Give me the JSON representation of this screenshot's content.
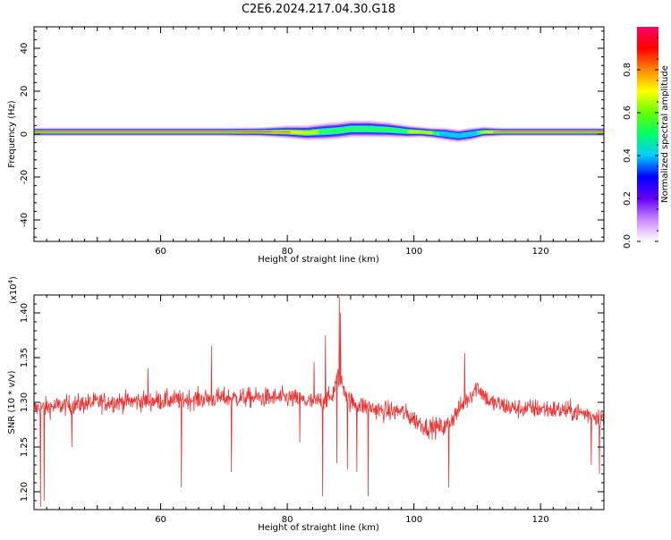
{
  "title": "C2E6.2024.217.04.30.G18",
  "chart_data": [
    {
      "type": "heatmap",
      "xlabel": "Height of straight line (km)",
      "ylabel": "Frequency (Hz)",
      "xlim": [
        40,
        130
      ],
      "ylim": [
        -50,
        50
      ],
      "xticks": [
        60,
        80,
        100,
        120
      ],
      "yticks": [
        40,
        20,
        0,
        -20,
        -40
      ],
      "colorbar": {
        "label": "Normalized spectral amplitude",
        "range": [
          0,
          1
        ],
        "ticks": [
          0.0,
          0.2,
          0.4,
          0.6,
          0.8
        ],
        "colors": [
          "#ffffff",
          "#cc88ff",
          "#6600ff",
          "#0000ff",
          "#00ccff",
          "#00ff66",
          "#66ff00",
          "#ffff00",
          "#ff8800",
          "#ff0000",
          "#ff0066"
        ]
      },
      "ridge": {
        "x": [
          40,
          50,
          60,
          70,
          76,
          80,
          83,
          86,
          88,
          90,
          93,
          96,
          99,
          101,
          103,
          105,
          107,
          109,
          111,
          114,
          118,
          122,
          126,
          130
        ],
        "center": [
          1,
          1,
          1,
          1,
          1,
          1,
          0.6,
          1.2,
          1.6,
          2.4,
          2.4,
          2,
          1.2,
          1,
          0.5,
          0,
          -0.8,
          0,
          1,
          1,
          1,
          1,
          1,
          1
        ],
        "halfwidth": [
          2,
          2,
          2,
          2,
          2.2,
          3,
          3.5,
          4,
          4,
          4,
          4,
          3.6,
          3,
          2.5,
          2.5,
          3,
          3,
          3,
          2.5,
          2,
          2,
          2,
          2,
          2
        ],
        "peak": [
          1,
          1,
          1,
          1,
          0.95,
          0.85,
          0.7,
          0.55,
          0.5,
          0.5,
          0.5,
          0.5,
          0.6,
          0.75,
          0.6,
          0.4,
          0.4,
          0.4,
          0.7,
          0.95,
          1,
          1,
          1,
          1
        ]
      }
    },
    {
      "type": "line",
      "xlabel": "Height of straight line (km)",
      "ylabel": "SNR (10 * v/v)",
      "multiplier_label": "(x10",
      "multiplier_exponent": "4",
      "multiplier_close": ")",
      "xlim": [
        40,
        130
      ],
      "ylim": [
        1.18,
        1.42
      ],
      "xticks": [
        60,
        80,
        100,
        120
      ],
      "yticks": [
        1.2,
        1.25,
        1.3,
        1.35,
        1.4
      ],
      "ytick_labels": [
        "1.20",
        "1.25",
        "1.30",
        "1.35",
        "1.40"
      ],
      "color": "#ee3333",
      "baseline": {
        "x": [
          40,
          50,
          60,
          70,
          80,
          84,
          87,
          88,
          90,
          95,
          98,
          102,
          105,
          108,
          110,
          112,
          116,
          120,
          125,
          130
        ],
        "y": [
          1.293,
          1.3,
          1.302,
          1.305,
          1.305,
          1.3,
          1.305,
          1.33,
          1.3,
          1.29,
          1.29,
          1.272,
          1.272,
          1.3,
          1.318,
          1.3,
          1.293,
          1.293,
          1.29,
          1.283
        ]
      },
      "spikes": [
        {
          "x": 41.0,
          "y": 1.183
        },
        {
          "x": 41.6,
          "y": 1.19
        },
        {
          "x": 63.3,
          "y": 1.205
        },
        {
          "x": 71.2,
          "y": 1.222
        },
        {
          "x": 85.6,
          "y": 1.195
        },
        {
          "x": 87.8,
          "y": 1.232
        },
        {
          "x": 88.2,
          "y": 1.418
        },
        {
          "x": 88.4,
          "y": 1.4
        },
        {
          "x": 86.0,
          "y": 1.375
        },
        {
          "x": 84.2,
          "y": 1.345
        },
        {
          "x": 68.0,
          "y": 1.363
        },
        {
          "x": 92.8,
          "y": 1.195
        },
        {
          "x": 105.5,
          "y": 1.205
        },
        {
          "x": 108.0,
          "y": 1.355
        },
        {
          "x": 128.0,
          "y": 1.23
        },
        {
          "x": 129.3,
          "y": 1.22
        },
        {
          "x": 91.0,
          "y": 1.222
        },
        {
          "x": 89.5,
          "y": 1.225
        },
        {
          "x": 46.0,
          "y": 1.25
        },
        {
          "x": 58.0,
          "y": 1.338
        },
        {
          "x": 82.0,
          "y": 1.255
        }
      ]
    }
  ]
}
